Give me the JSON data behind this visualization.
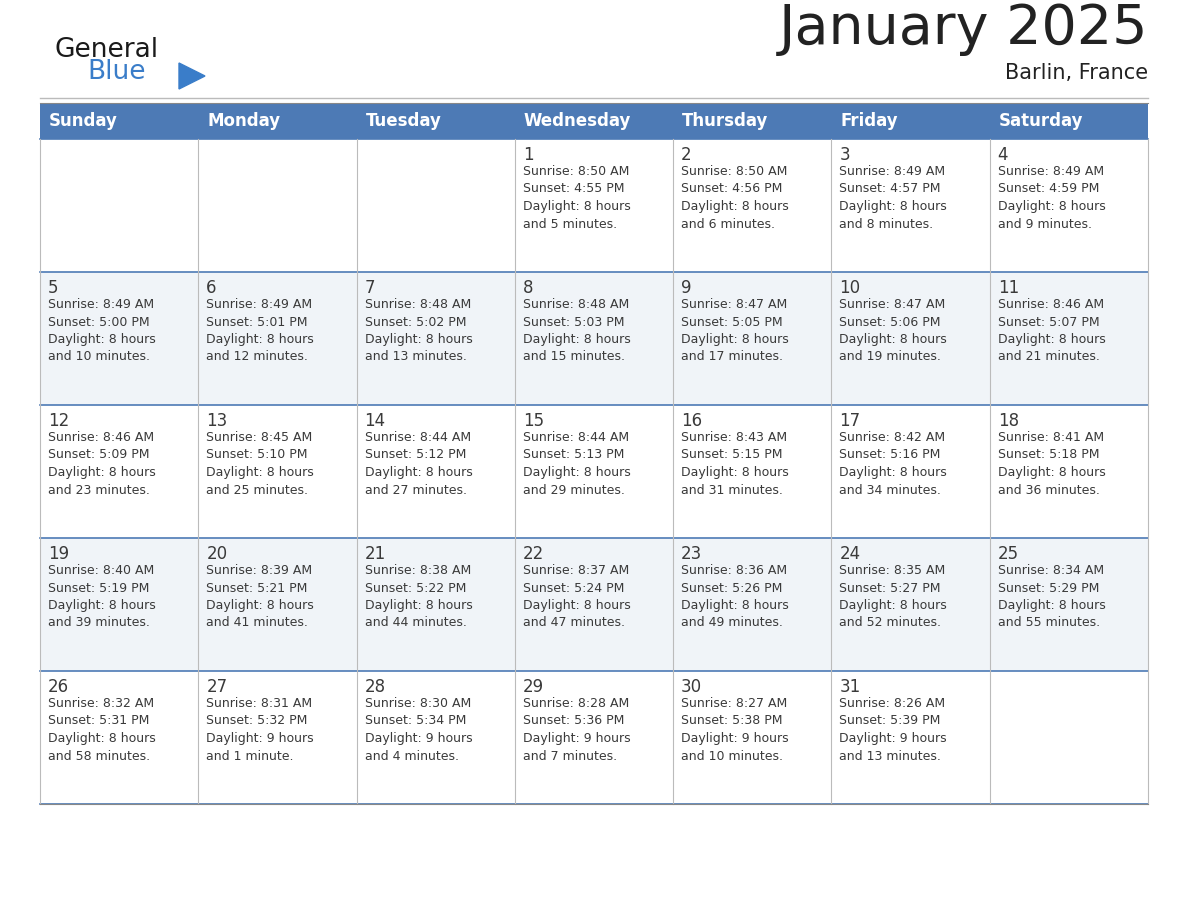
{
  "title": "January 2025",
  "subtitle": "Barlin, France",
  "days_of_week": [
    "Sunday",
    "Monday",
    "Tuesday",
    "Wednesday",
    "Thursday",
    "Friday",
    "Saturday"
  ],
  "header_bg": "#4D7AB5",
  "header_text": "#FFFFFF",
  "row_bg_light": "#F0F4F8",
  "row_bg_white": "#FFFFFF",
  "cell_border": "#B0BEC5",
  "day_number_color": "#3A3A3A",
  "text_color": "#3A3A3A",
  "title_color": "#222222",
  "logo_black": "#1A1A1A",
  "logo_blue": "#3A7DC9",
  "calendar_data": [
    [
      {
        "day": "",
        "sunrise": "",
        "sunset": "",
        "daylight": ""
      },
      {
        "day": "",
        "sunrise": "",
        "sunset": "",
        "daylight": ""
      },
      {
        "day": "",
        "sunrise": "",
        "sunset": "",
        "daylight": ""
      },
      {
        "day": "1",
        "sunrise": "8:50 AM",
        "sunset": "4:55 PM",
        "daylight": "8 hours and 5 minutes."
      },
      {
        "day": "2",
        "sunrise": "8:50 AM",
        "sunset": "4:56 PM",
        "daylight": "8 hours and 6 minutes."
      },
      {
        "day": "3",
        "sunrise": "8:49 AM",
        "sunset": "4:57 PM",
        "daylight": "8 hours and 8 minutes."
      },
      {
        "day": "4",
        "sunrise": "8:49 AM",
        "sunset": "4:59 PM",
        "daylight": "8 hours and 9 minutes."
      }
    ],
    [
      {
        "day": "5",
        "sunrise": "8:49 AM",
        "sunset": "5:00 PM",
        "daylight": "8 hours and 10 minutes."
      },
      {
        "day": "6",
        "sunrise": "8:49 AM",
        "sunset": "5:01 PM",
        "daylight": "8 hours and 12 minutes."
      },
      {
        "day": "7",
        "sunrise": "8:48 AM",
        "sunset": "5:02 PM",
        "daylight": "8 hours and 13 minutes."
      },
      {
        "day": "8",
        "sunrise": "8:48 AM",
        "sunset": "5:03 PM",
        "daylight": "8 hours and 15 minutes."
      },
      {
        "day": "9",
        "sunrise": "8:47 AM",
        "sunset": "5:05 PM",
        "daylight": "8 hours and 17 minutes."
      },
      {
        "day": "10",
        "sunrise": "8:47 AM",
        "sunset": "5:06 PM",
        "daylight": "8 hours and 19 minutes."
      },
      {
        "day": "11",
        "sunrise": "8:46 AM",
        "sunset": "5:07 PM",
        "daylight": "8 hours and 21 minutes."
      }
    ],
    [
      {
        "day": "12",
        "sunrise": "8:46 AM",
        "sunset": "5:09 PM",
        "daylight": "8 hours and 23 minutes."
      },
      {
        "day": "13",
        "sunrise": "8:45 AM",
        "sunset": "5:10 PM",
        "daylight": "8 hours and 25 minutes."
      },
      {
        "day": "14",
        "sunrise": "8:44 AM",
        "sunset": "5:12 PM",
        "daylight": "8 hours and 27 minutes."
      },
      {
        "day": "15",
        "sunrise": "8:44 AM",
        "sunset": "5:13 PM",
        "daylight": "8 hours and 29 minutes."
      },
      {
        "day": "16",
        "sunrise": "8:43 AM",
        "sunset": "5:15 PM",
        "daylight": "8 hours and 31 minutes."
      },
      {
        "day": "17",
        "sunrise": "8:42 AM",
        "sunset": "5:16 PM",
        "daylight": "8 hours and 34 minutes."
      },
      {
        "day": "18",
        "sunrise": "8:41 AM",
        "sunset": "5:18 PM",
        "daylight": "8 hours and 36 minutes."
      }
    ],
    [
      {
        "day": "19",
        "sunrise": "8:40 AM",
        "sunset": "5:19 PM",
        "daylight": "8 hours and 39 minutes."
      },
      {
        "day": "20",
        "sunrise": "8:39 AM",
        "sunset": "5:21 PM",
        "daylight": "8 hours and 41 minutes."
      },
      {
        "day": "21",
        "sunrise": "8:38 AM",
        "sunset": "5:22 PM",
        "daylight": "8 hours and 44 minutes."
      },
      {
        "day": "22",
        "sunrise": "8:37 AM",
        "sunset": "5:24 PM",
        "daylight": "8 hours and 47 minutes."
      },
      {
        "day": "23",
        "sunrise": "8:36 AM",
        "sunset": "5:26 PM",
        "daylight": "8 hours and 49 minutes."
      },
      {
        "day": "24",
        "sunrise": "8:35 AM",
        "sunset": "5:27 PM",
        "daylight": "8 hours and 52 minutes."
      },
      {
        "day": "25",
        "sunrise": "8:34 AM",
        "sunset": "5:29 PM",
        "daylight": "8 hours and 55 minutes."
      }
    ],
    [
      {
        "day": "26",
        "sunrise": "8:32 AM",
        "sunset": "5:31 PM",
        "daylight": "8 hours and 58 minutes."
      },
      {
        "day": "27",
        "sunrise": "8:31 AM",
        "sunset": "5:32 PM",
        "daylight": "9 hours and 1 minute."
      },
      {
        "day": "28",
        "sunrise": "8:30 AM",
        "sunset": "5:34 PM",
        "daylight": "9 hours and 4 minutes."
      },
      {
        "day": "29",
        "sunrise": "8:28 AM",
        "sunset": "5:36 PM",
        "daylight": "9 hours and 7 minutes."
      },
      {
        "day": "30",
        "sunrise": "8:27 AM",
        "sunset": "5:38 PM",
        "daylight": "9 hours and 10 minutes."
      },
      {
        "day": "31",
        "sunrise": "8:26 AM",
        "sunset": "5:39 PM",
        "daylight": "9 hours and 13 minutes."
      },
      {
        "day": "",
        "sunrise": "",
        "sunset": "",
        "daylight": ""
      }
    ]
  ]
}
